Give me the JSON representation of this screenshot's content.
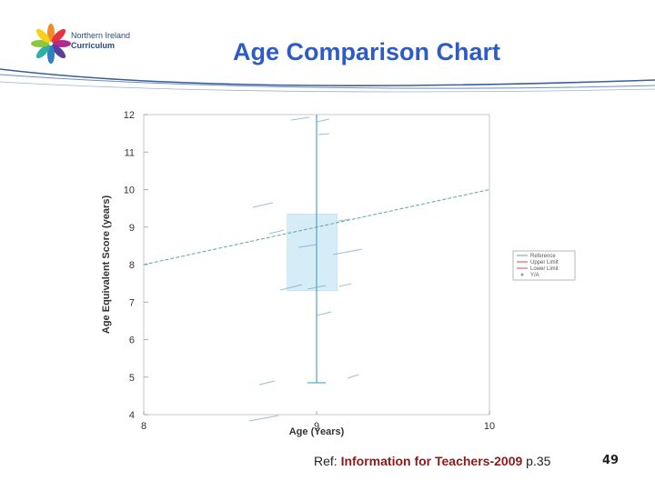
{
  "logo": {
    "line1": "Northern Ireland",
    "line2": "Curriculum"
  },
  "slide": {
    "title": "Age Comparison Chart",
    "page_number": "49"
  },
  "reference": {
    "prefix": "Ref: ",
    "source": "Information for Teachers-2009",
    "suffix": " p.35"
  },
  "colors": {
    "title": "#2e5cc4",
    "reference_line": "#5aa8a8",
    "box_fill": "#d6ecf7",
    "whisker": "#4aa6c8",
    "annotation": "#6fa6c8"
  },
  "chart_data": {
    "type": "line",
    "title": "",
    "xlabel": "Age (Years)",
    "ylabel": "Age Equivalent Score (years)",
    "xlim": [
      8,
      10
    ],
    "ylim": [
      4,
      12
    ],
    "xticks": [
      "8",
      "9",
      "10"
    ],
    "yticks": [
      "4",
      "5",
      "6",
      "7",
      "8",
      "9",
      "10",
      "11",
      "12"
    ],
    "grid": false,
    "legend_position": "right",
    "legend": [
      "Reference",
      "Upper Limit",
      "Lower Limit",
      "Y/A"
    ],
    "reference_line": {
      "name": "Reference",
      "x": [
        8,
        10
      ],
      "y": [
        8,
        10
      ]
    },
    "box": {
      "x_min": 8.83,
      "x_max": 9.12,
      "q1": 7.3,
      "q3": 9.35,
      "whisker_low": 4.85,
      "whisker_high": 12
    },
    "whisker_x": 9
  }
}
